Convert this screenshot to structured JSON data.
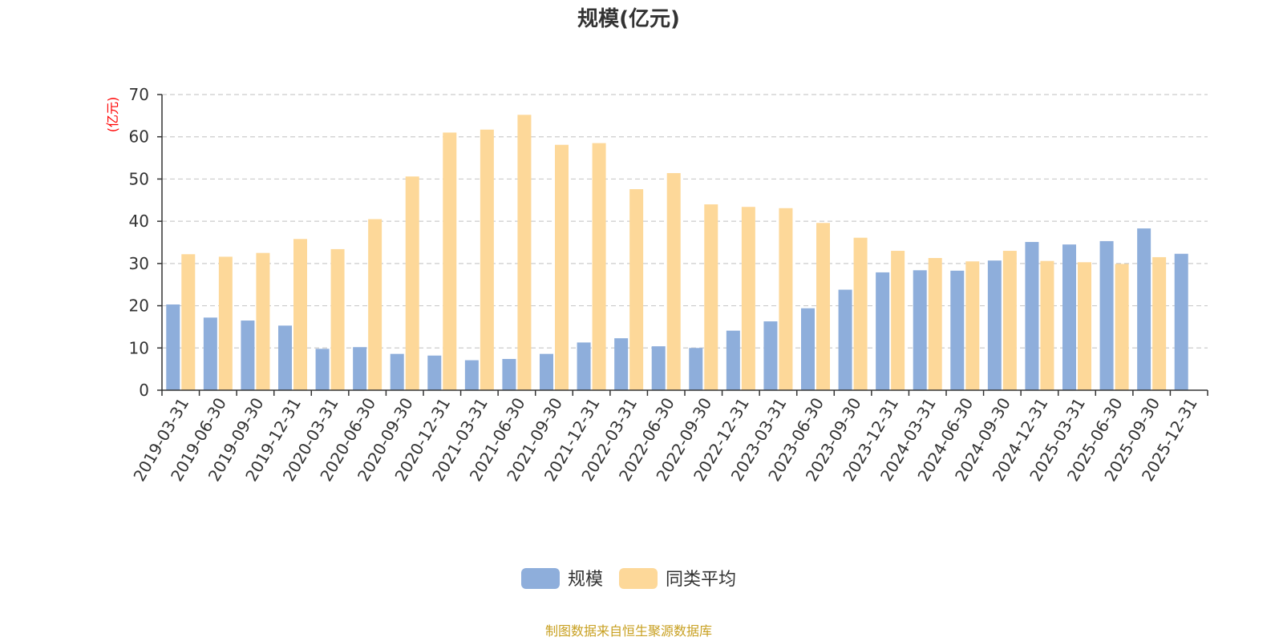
{
  "chart_data": {
    "type": "bar",
    "title": "规模(亿元)",
    "ylabel": "(亿元)",
    "xlabel": "",
    "ylim": [
      0,
      70
    ],
    "yticks": [
      0,
      10,
      20,
      30,
      40,
      50,
      60,
      70
    ],
    "grid": true,
    "legend_position": "bottom-center",
    "categories": [
      "2019-03-31",
      "2019-06-30",
      "2019-09-30",
      "2019-12-31",
      "2020-03-31",
      "2020-06-30",
      "2020-09-30",
      "2020-12-31",
      "2021-03-31",
      "2021-06-30",
      "2021-09-30",
      "2021-12-31",
      "2022-03-31",
      "2022-06-30",
      "2022-09-30",
      "2022-12-31",
      "2023-03-31",
      "2023-06-30",
      "2023-09-30",
      "2023-12-31",
      "2024-03-31",
      "2024-06-30",
      "2024-09-30",
      "2024-12-31",
      "2025-03-31",
      "2025-06-30",
      "2025-09-30",
      "2025-12-31"
    ],
    "series": [
      {
        "name": "规模",
        "color": "#8eaedb",
        "values": [
          20.3,
          17.2,
          16.5,
          15.3,
          9.8,
          10.2,
          8.6,
          8.2,
          7.1,
          7.4,
          8.6,
          11.3,
          12.3,
          10.4,
          10.0,
          14.1,
          16.3,
          19.4,
          23.8,
          27.9,
          28.4,
          28.3,
          30.7,
          35.1,
          34.5,
          35.3,
          38.3,
          32.3
        ]
      },
      {
        "name": "同类平均",
        "color": "#fdd899",
        "values": [
          32.2,
          31.6,
          32.5,
          35.8,
          33.4,
          40.5,
          50.6,
          61.0,
          61.7,
          65.2,
          58.1,
          58.5,
          47.6,
          51.4,
          44.0,
          43.4,
          43.1,
          39.6,
          36.1,
          33.0,
          31.3,
          30.5,
          33.0,
          30.6,
          30.3,
          29.9,
          31.5,
          null
        ]
      }
    ]
  },
  "footer": {
    "source_text": "制图数据来自恒生聚源数据库"
  },
  "colors": {
    "unit_label": "#ff0000",
    "source_text": "#c8a021",
    "axis": "#333333",
    "grid": "#cccccc"
  }
}
